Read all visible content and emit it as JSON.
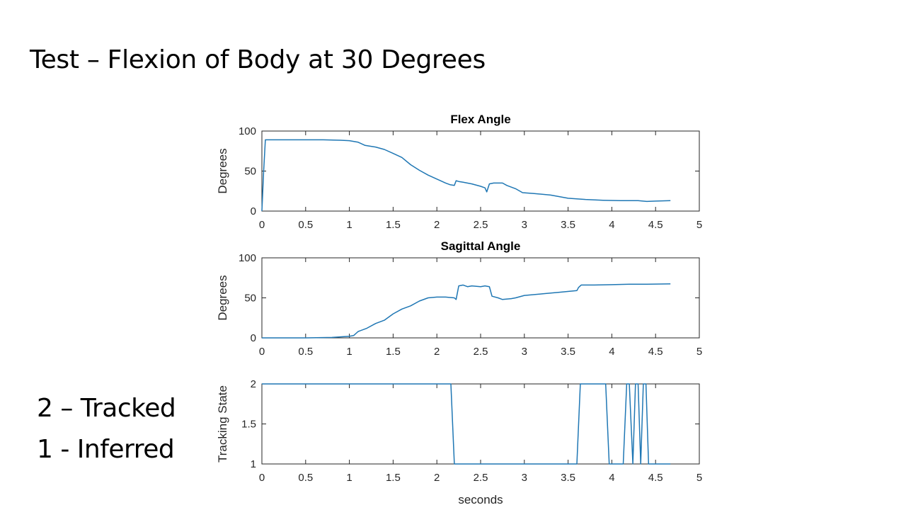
{
  "slide": {
    "title": "Test – Flexion of Body at 30 Degrees",
    "notes": [
      "2 – Tracked",
      "1 - Inferred"
    ]
  },
  "colors": {
    "line": "#1f77b4",
    "axis": "#262626"
  },
  "chart_data": [
    {
      "type": "line",
      "title": "Flex Angle",
      "xlabel": "",
      "ylabel": "Degrees",
      "xlim": [
        0,
        5
      ],
      "ylim": [
        0,
        100
      ],
      "xticks": [
        0,
        0.5,
        1,
        1.5,
        2,
        2.5,
        3,
        3.5,
        4,
        4.5,
        5
      ],
      "yticks": [
        0,
        50,
        100
      ],
      "series": [
        {
          "x": [
            0,
            0.02,
            0.04,
            0.1,
            0.3,
            0.5,
            0.7,
            0.9,
            1.0,
            1.1,
            1.18,
            1.3,
            1.4,
            1.5,
            1.6,
            1.7,
            1.8,
            1.9,
            2.0,
            2.1,
            2.15,
            2.2,
            2.22,
            2.25,
            2.3,
            2.4,
            2.5,
            2.55,
            2.57,
            2.6,
            2.65,
            2.75,
            2.8,
            2.9,
            2.98,
            3.1,
            3.3,
            3.5,
            3.7,
            3.9,
            4.1,
            4.3,
            4.4,
            4.5,
            4.67
          ],
          "y": [
            0,
            50,
            89,
            89,
            89,
            89,
            89,
            88.5,
            88,
            86,
            82,
            80,
            77,
            72,
            67,
            58,
            51,
            45,
            40,
            35,
            33,
            32,
            38,
            37,
            36,
            34,
            31,
            29,
            24,
            34,
            35,
            35,
            32,
            28,
            23,
            22,
            20,
            16,
            14.5,
            13.5,
            13,
            13,
            12,
            12.5,
            13
          ]
        }
      ]
    },
    {
      "type": "line",
      "title": "Sagittal Angle",
      "xlabel": "",
      "ylabel": "Degrees",
      "xlim": [
        0,
        5
      ],
      "ylim": [
        0,
        100
      ],
      "xticks": [
        0,
        0.5,
        1,
        1.5,
        2,
        2.5,
        3,
        3.5,
        4,
        4.5,
        5
      ],
      "yticks": [
        0,
        50,
        100
      ],
      "series": [
        {
          "x": [
            0,
            0.5,
            0.8,
            1.0,
            1.05,
            1.1,
            1.2,
            1.3,
            1.4,
            1.5,
            1.6,
            1.7,
            1.8,
            1.9,
            2.0,
            2.1,
            2.2,
            2.22,
            2.25,
            2.3,
            2.35,
            2.4,
            2.5,
            2.55,
            2.6,
            2.63,
            2.7,
            2.75,
            2.85,
            2.9,
            3.0,
            3.2,
            3.4,
            3.6,
            3.62,
            3.65,
            3.8,
            4.0,
            4.2,
            4.4,
            4.67
          ],
          "y": [
            0,
            0,
            0.5,
            2,
            3,
            8,
            12,
            18,
            22,
            30,
            36,
            40,
            46,
            50,
            51,
            51,
            50,
            48,
            65,
            66,
            64,
            65,
            64,
            65,
            64,
            52,
            50,
            48,
            49,
            50,
            53,
            55,
            57,
            59,
            63,
            66,
            66,
            66.5,
            67,
            67,
            67.5
          ]
        }
      ]
    },
    {
      "type": "line",
      "title": "",
      "xlabel": "seconds",
      "ylabel": "Tracking State",
      "xlim": [
        0,
        5
      ],
      "ylim": [
        1,
        2
      ],
      "xticks": [
        0,
        0.5,
        1,
        1.5,
        2,
        2.5,
        3,
        3.5,
        4,
        4.5,
        5
      ],
      "yticks": [
        1,
        1.5,
        2
      ],
      "series": [
        {
          "x": [
            0,
            2.16,
            2.2,
            3.6,
            3.64,
            3.93,
            3.97,
            4.13,
            4.17,
            4.2,
            4.24,
            4.27,
            4.3,
            4.33,
            4.36,
            4.39,
            4.42,
            4.45,
            4.67
          ],
          "y": [
            2,
            2,
            1,
            1,
            2,
            2,
            1,
            1,
            2,
            2,
            1,
            2,
            2,
            1,
            2,
            2,
            1,
            1,
            1
          ]
        }
      ]
    }
  ]
}
